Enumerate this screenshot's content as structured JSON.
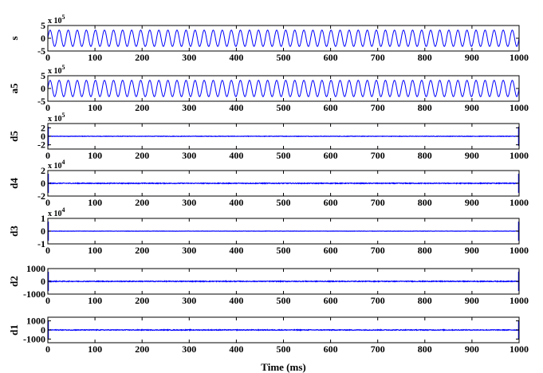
{
  "chart_data": {
    "type": "line",
    "xlabel": "Time (ms)",
    "xlim": [
      0,
      1000
    ],
    "xticks": [
      0,
      100,
      200,
      300,
      400,
      500,
      600,
      700,
      800,
      900,
      1000
    ],
    "line_color": "#0000ff",
    "panels": [
      {
        "name": "s",
        "ylabel": "s",
        "exponent": "x 10",
        "exponent_power": "5",
        "ylim": [
          -5,
          5
        ],
        "yticks": [
          5,
          0,
          -5
        ],
        "ytick_labels": [
          "5",
          "0",
          "-5"
        ],
        "signal": {
          "kind": "sine",
          "cycles": 52,
          "amplitude": 3.2,
          "offset": 0
        }
      },
      {
        "name": "a5",
        "ylabel": "a5",
        "exponent": "x 10",
        "exponent_power": "5",
        "ylim": [
          -5,
          5
        ],
        "yticks": [
          5,
          0,
          -5
        ],
        "ytick_labels": [
          "5",
          "0",
          "-5"
        ],
        "signal": {
          "kind": "sine",
          "cycles": 52,
          "amplitude": 3.2,
          "offset": 0
        }
      },
      {
        "name": "d5",
        "ylabel": "d5",
        "exponent": "x 10",
        "exponent_power": "5",
        "ylim": [
          -3,
          3
        ],
        "yticks": [
          2,
          0,
          -2
        ],
        "ytick_labels": [
          "2",
          "0",
          "-2"
        ],
        "signal": {
          "kind": "flat",
          "noise": 0.05,
          "spike_start": 0,
          "spike_end": 0
        }
      },
      {
        "name": "d4",
        "ylabel": "d4",
        "exponent": "x 10",
        "exponent_power": "4",
        "ylim": [
          -2,
          2
        ],
        "yticks": [
          2,
          0,
          -2
        ],
        "ytick_labels": [
          "2",
          "0",
          "-2"
        ],
        "signal": {
          "kind": "flat",
          "noise": 0.06,
          "spike_start": 0.5,
          "spike_end": 0.5
        }
      },
      {
        "name": "d3",
        "ylabel": "d3",
        "exponent": "x 10",
        "exponent_power": "4",
        "ylim": [
          -1,
          1
        ],
        "yticks": [
          1,
          0,
          -1
        ],
        "ytick_labels": [
          "1",
          "0",
          "-1"
        ],
        "signal": {
          "kind": "flat",
          "noise": 0.01,
          "spike_start": 0.6,
          "spike_end": 0.6
        }
      },
      {
        "name": "d2",
        "ylabel": "d2",
        "exponent": "",
        "exponent_power": "",
        "ylim": [
          -1000,
          1000
        ],
        "yticks": [
          1000,
          0,
          -1000
        ],
        "ytick_labels": [
          "1000",
          "0",
          "-1000"
        ],
        "signal": {
          "kind": "flat",
          "noise": 30,
          "spike_start": 0,
          "spike_end": 900
        }
      },
      {
        "name": "d1",
        "ylabel": "d1",
        "exponent": "",
        "exponent_power": "",
        "ylim": [
          -1400,
          1400
        ],
        "yticks": [
          1000,
          0,
          -1000
        ],
        "ytick_labels": [
          "1000",
          "0",
          "-1000"
        ],
        "signal": {
          "kind": "flat",
          "noise": 40,
          "spike_start": 0,
          "spike_end": 0
        }
      }
    ]
  }
}
